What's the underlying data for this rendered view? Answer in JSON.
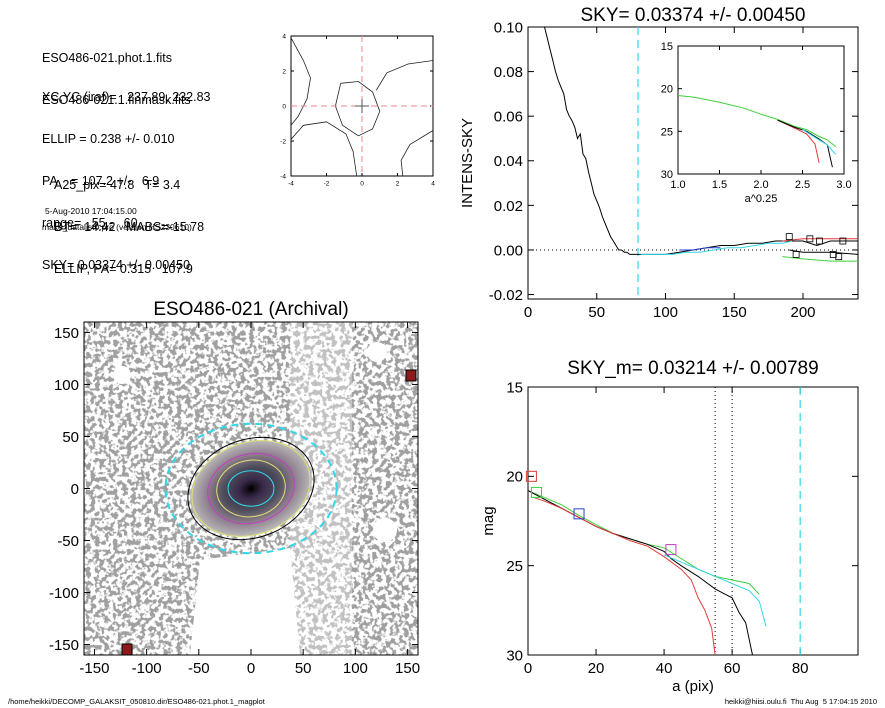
{
  "info": {
    "files": [
      "ESO486-021.phot.1.fits",
      "ESO486-021.1.finmask.fits"
    ],
    "params": [
      "XC,YC (iraf)=   237.89, 232.83",
      "ELLIP = 0.238 +/- 0.010",
      "PA    = 107.2 +/-   6.9",
      "range=   55.-   60.",
      "SKY= 0.03374 +/- 0.00450"
    ],
    "results": [
      "A25_pix= 47.8   T= 3.4",
      "BT=  14.42   MABS=-15.78",
      "ELLIP, PA= 0.315   107.9"
    ],
    "date": "5-Aug-2010 17:04:15.00",
    "program": "make_datalist0.pro (version HS230610)"
  },
  "footer": {
    "left": "/home/heikki/DECOMP_GALAKSIT_050810.dir/ESO486-021.phot.1_magplot",
    "right": "heikki@hiisi.oulu.fi  Thu Aug  5 17:04:15 2010"
  },
  "colors": {
    "cyan": "#33d6e8",
    "red": "#e23a3a",
    "green": "#3ecf3e",
    "blue": "#2b3fd0",
    "magenta": "#c040c0",
    "black": "#000000",
    "grey": "#8a8a8a"
  },
  "chart_data": [
    {
      "id": "centre-contour",
      "type": "contour",
      "x_ticks": [
        -4,
        -2,
        0,
        2,
        4
      ],
      "y_ticks": [
        -4,
        -2,
        0,
        2,
        4
      ],
      "xlim": [
        -4,
        4
      ],
      "ylim": [
        -4,
        4
      ],
      "crosshair": [
        0,
        0
      ],
      "contours": [
        [
          [
            -4.0,
            3.9
          ],
          [
            -3.3,
            2.6
          ],
          [
            -2.9,
            1.6
          ],
          [
            -3.1,
            0.4
          ],
          [
            -3.6,
            -0.6
          ],
          [
            -4.0,
            -1.1
          ]
        ],
        [
          [
            -4.0,
            -1.9
          ],
          [
            -3.3,
            -1.1
          ],
          [
            -2.0,
            -0.9
          ],
          [
            -0.9,
            -1.6
          ],
          [
            -0.5,
            -2.6
          ],
          [
            -0.3,
            -4.0
          ]
        ],
        [
          [
            -1.2,
            1.3
          ],
          [
            -0.2,
            1.4
          ],
          [
            0.6,
            0.8
          ],
          [
            1.0,
            -0.3
          ],
          [
            0.6,
            -1.3
          ],
          [
            -0.2,
            -1.7
          ],
          [
            -1.1,
            -1.1
          ],
          [
            -1.5,
            0.0
          ],
          [
            -1.2,
            1.3
          ]
        ],
        [
          [
            4.0,
            2.6
          ],
          [
            2.6,
            2.4
          ],
          [
            1.4,
            1.9
          ],
          [
            0.8,
            0.9
          ]
        ],
        [
          [
            4.0,
            -1.4
          ],
          [
            2.7,
            -2.2
          ],
          [
            2.2,
            -3.1
          ],
          [
            2.3,
            -4.0
          ]
        ]
      ]
    },
    {
      "id": "sky-profile",
      "type": "line",
      "title": "SKY= 0.03374 +/- 0.00450",
      "ylabel": "INTENS-SKY",
      "xlim": [
        0,
        240
      ],
      "ylim": [
        -0.022,
        0.1
      ],
      "x_ticks": [
        0,
        50,
        100,
        150,
        200
      ],
      "y_ticks": [
        -0.02,
        0.0,
        0.02,
        0.04,
        0.06,
        0.08,
        0.1
      ],
      "y_tick_labels": [
        "-0.02",
        "0.00",
        "0.02",
        "0.04",
        "0.06",
        "0.08",
        "0.10"
      ],
      "vline": 80,
      "series": [
        {
          "color": "black",
          "x": [
            12,
            14,
            16,
            18,
            20,
            22,
            24,
            26,
            28,
            30,
            32,
            34,
            36,
            38,
            40,
            42,
            44,
            46,
            48,
            50,
            52,
            54,
            56,
            58,
            60,
            62,
            64,
            66,
            68,
            70,
            72,
            74,
            76,
            78,
            80,
            85,
            90,
            100,
            110,
            120,
            130,
            140,
            150,
            160,
            170,
            180,
            190,
            200,
            210,
            220,
            230,
            240
          ],
          "y": [
            0.1,
            0.095,
            0.09,
            0.085,
            0.08,
            0.076,
            0.073,
            0.07,
            0.063,
            0.06,
            0.058,
            0.055,
            0.05,
            0.052,
            0.043,
            0.041,
            0.035,
            0.03,
            0.025,
            0.022,
            0.019,
            0.015,
            0.012,
            0.009,
            0.006,
            0.004,
            0.002,
            0.0,
            0.0,
            -0.001,
            -0.001,
            -0.002,
            -0.002,
            -0.002,
            -0.002,
            -0.002,
            -0.002,
            -0.002,
            -0.001,
            0.0,
            0.001,
            0.002,
            0.002,
            0.003,
            0.003,
            0.004,
            0.004,
            0.004,
            0.002,
            0.004,
            0.004,
            0.004
          ]
        },
        {
          "color": "cyan",
          "x": [
            82,
            95,
            105,
            115,
            125,
            135,
            145,
            155,
            165,
            175,
            185,
            192
          ],
          "y": [
            -0.002,
            -0.002,
            -0.002,
            -0.001,
            -0.001,
            0.0,
            0.001,
            0.001,
            0.002,
            0.003,
            0.003,
            0.004
          ]
        },
        {
          "color": "blue",
          "x": [
            110,
            120,
            130,
            140
          ],
          "y": [
            0.0,
            0.0,
            0.001,
            0.001
          ]
        },
        {
          "color": "red",
          "x": [
            185,
            200,
            220,
            240
          ],
          "y": [
            0.004,
            0.005,
            0.005,
            0.005
          ]
        },
        {
          "color": "green",
          "x": [
            185,
            200,
            220,
            240
          ],
          "y": [
            -0.003,
            -0.004,
            -0.005,
            -0.005
          ]
        },
        {
          "color": "black",
          "x": [
            190,
            200,
            220,
            240
          ],
          "y": [
            0.0,
            -0.001,
            -0.001,
            -0.002
          ]
        }
      ],
      "points": {
        "x": [
          190,
          195,
          205,
          212,
          222,
          226,
          229
        ],
        "y": [
          0.006,
          -0.002,
          0.005,
          0.004,
          -0.002,
          -0.003,
          0.004
        ]
      }
    },
    {
      "id": "inset",
      "type": "line",
      "xlabel": "a^0.25",
      "xlim": [
        1.0,
        3.0
      ],
      "ylim": [
        30,
        15
      ],
      "x_ticks": [
        1.0,
        1.5,
        2.0,
        2.5,
        3.0
      ],
      "x_tick_labels": [
        "1.0",
        "1.5",
        "2.0",
        "2.5",
        "3.0"
      ],
      "y_ticks": [
        15,
        20,
        25,
        30
      ],
      "series": [
        {
          "color": "green",
          "x": [
            1.0,
            1.2,
            1.5,
            1.8,
            2.0,
            2.2,
            2.4,
            2.55,
            2.7,
            2.8,
            2.9
          ],
          "y": [
            20.8,
            21.0,
            21.6,
            22.3,
            23.0,
            23.6,
            24.4,
            24.8,
            25.6,
            26.0,
            26.8
          ]
        },
        {
          "color": "red",
          "x": [
            2.2,
            2.4,
            2.55,
            2.65,
            2.7
          ],
          "y": [
            23.7,
            24.6,
            25.3,
            26.5,
            28.7
          ]
        },
        {
          "color": "black",
          "x": [
            2.2,
            2.4,
            2.55,
            2.7,
            2.8,
            2.86
          ],
          "y": [
            23.7,
            24.5,
            25.0,
            25.9,
            26.6,
            29.2
          ]
        },
        {
          "color": "cyan",
          "x": [
            2.5,
            2.6,
            2.7,
            2.8,
            2.9
          ],
          "y": [
            24.8,
            25.4,
            26.0,
            26.6,
            27.7
          ]
        }
      ]
    },
    {
      "id": "image",
      "type": "image",
      "title": "ESO486-021 (Archival)",
      "xlim": [
        -160,
        160
      ],
      "ylim": [
        -160,
        160
      ],
      "x_ticks": [
        -150,
        -100,
        -50,
        0,
        50,
        100,
        150
      ],
      "y_ticks": [
        -150,
        -100,
        -50,
        0,
        50,
        100,
        150
      ],
      "centre_label": "0",
      "ellipses": [
        {
          "color": "cyan",
          "a": 82,
          "b": 62,
          "pa": 0,
          "dash": true
        },
        {
          "color": "black",
          "a": 62,
          "b": 47,
          "pa": 20
        },
        {
          "color": "#e0e070",
          "a": 58,
          "b": 44,
          "pa": 20
        },
        {
          "color": "magenta",
          "a": 42,
          "b": 33,
          "pa": 15
        },
        {
          "color": "#e0e070",
          "a": 33,
          "b": 27,
          "pa": 10
        },
        {
          "color": "cyan",
          "a": 22,
          "b": 17,
          "pa": 0
        }
      ]
    },
    {
      "id": "mag-profile",
      "type": "line",
      "title": "SKY_m=  0.03214 +/- 0.00789",
      "xlabel": "a (pix)",
      "ylabel": "mag",
      "xlim": [
        0,
        97
      ],
      "ylim": [
        30,
        15
      ],
      "x_ticks": [
        0,
        20,
        40,
        60,
        80
      ],
      "y_ticks": [
        15,
        20,
        25,
        30
      ],
      "vlines": [
        {
          "x": 55,
          "color": "black",
          "style": "dotted"
        },
        {
          "x": 60,
          "color": "black",
          "style": "dotted"
        },
        {
          "x": 80,
          "color": "cyan",
          "style": "dashed"
        }
      ],
      "series": [
        {
          "color": "green",
          "x": [
            0,
            5,
            10,
            15,
            20,
            25,
            30,
            35,
            40,
            45,
            50,
            55,
            60,
            65,
            68
          ],
          "y": [
            20.8,
            21.2,
            21.6,
            22.2,
            22.7,
            23.2,
            23.5,
            23.8,
            24.0,
            24.6,
            25.2,
            25.6,
            25.8,
            26.0,
            26.6
          ]
        },
        {
          "color": "black",
          "x": [
            0,
            5,
            10,
            15,
            20,
            25,
            30,
            35,
            40,
            42,
            45,
            50,
            55,
            58,
            60,
            62,
            64,
            66
          ],
          "y": [
            20.8,
            21.3,
            21.8,
            22.3,
            22.8,
            23.2,
            23.5,
            23.8,
            24.2,
            24.6,
            25.0,
            25.6,
            26.3,
            26.6,
            26.8,
            27.6,
            28.2,
            30.0
          ]
        },
        {
          "color": "red",
          "x": [
            2,
            5,
            10,
            15,
            20,
            25,
            30,
            35,
            40,
            45,
            48,
            50,
            52,
            54,
            55
          ],
          "y": [
            21.2,
            21.4,
            21.8,
            22.3,
            22.8,
            23.2,
            23.6,
            23.9,
            24.5,
            25.2,
            25.8,
            26.8,
            27.5,
            28.5,
            30.0
          ]
        },
        {
          "color": "cyan",
          "x": [
            40,
            45,
            50,
            55,
            60,
            65,
            68,
            70
          ],
          "y": [
            24.4,
            24.8,
            25.2,
            25.6,
            26.0,
            26.4,
            27.0,
            28.4
          ]
        }
      ],
      "markers": [
        {
          "x": 1,
          "y": 20.0,
          "color": "red"
        },
        {
          "x": 2.5,
          "y": 20.9,
          "color": "green"
        },
        {
          "x": 15,
          "y": 22.1,
          "color": "blue"
        },
        {
          "x": 42,
          "y": 24.1,
          "color": "magenta"
        }
      ]
    }
  ]
}
